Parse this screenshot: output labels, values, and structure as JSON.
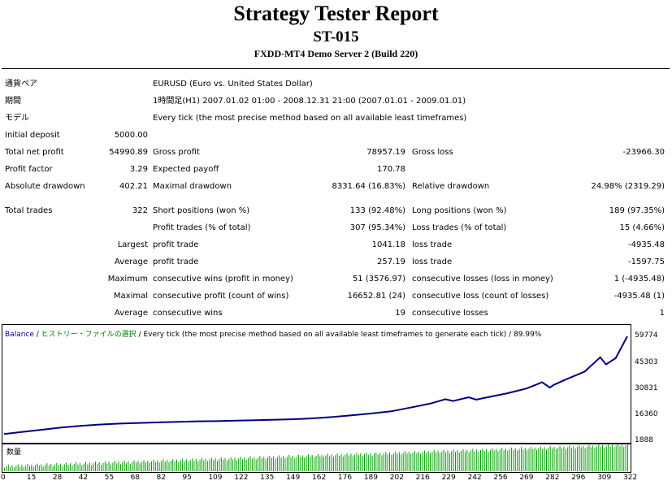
{
  "report": {
    "title": "Strategy Tester Report",
    "subtitle": "ST-015",
    "server": "FXDD-MT4 Demo Server 2 (Build 220)"
  },
  "info": {
    "symbol_label": "通貨ペア",
    "symbol_value": "EURUSD (Euro vs. United States Dollar)",
    "period_label": "期間",
    "period_value": "1時間足(H1) 2007.01.02 01:00 - 2008.12.31 21:00 (2007.01.01 - 2009.01.01)",
    "model_label": "モデル",
    "model_value": "Every tick (the most precise method based on all available least timeframes)"
  },
  "stats": {
    "initial_deposit_label": "Initial deposit",
    "initial_deposit": "5000.00",
    "total_net_profit_label": "Total net profit",
    "total_net_profit": "54990.89",
    "gross_profit_label": "Gross profit",
    "gross_profit": "78957.19",
    "gross_loss_label": "Gross loss",
    "gross_loss": "-23966.30",
    "profit_factor_label": "Profit factor",
    "profit_factor": "3.29",
    "expected_payoff_label": "Expected payoff",
    "expected_payoff": "170.78",
    "absolute_drawdown_label": "Absolute drawdown",
    "absolute_drawdown": "402.21",
    "maximal_drawdown_label": "Maximal drawdown",
    "maximal_drawdown": "8331.64 (16.83%)",
    "relative_drawdown_label": "Relative drawdown",
    "relative_drawdown": "24.98% (2319.29)",
    "total_trades_label": "Total trades",
    "total_trades": "322",
    "short_positions_label": "Short positions (won %)",
    "short_positions": "133 (92.48%)",
    "long_positions_label": "Long positions (won %)",
    "long_positions": "189 (97.35%)",
    "profit_trades_label": "Profit trades (% of total)",
    "profit_trades": "307 (95.34%)",
    "loss_trades_label": "Loss trades (% of total)",
    "loss_trades": "15 (4.66%)",
    "largest_label": "Largest",
    "largest_profit_label": "profit trade",
    "largest_profit": "1041.18",
    "largest_loss_label": "loss trade",
    "largest_loss": "-4935.48",
    "average_label": "Average",
    "average_profit_label": "profit trade",
    "average_profit": "257.19",
    "average_loss_label": "loss trade",
    "average_loss": "-1597.75",
    "maximum_label": "Maximum",
    "max_consec_wins_label": "consecutive wins (profit in money)",
    "max_consec_wins": "51 (3576.97)",
    "max_consec_losses_label": "consecutive losses (loss in money)",
    "max_consec_losses": "1 (-4935.48)",
    "maximal_label": "Maximal",
    "maximal_consec_profit_label": "consecutive profit (count of wins)",
    "maximal_consec_profit": "16652.81 (24)",
    "maximal_consec_loss_label": "consecutive loss (count of losses)",
    "maximal_consec_loss": "-4935.48 (1)",
    "average2_label": "Average",
    "avg_consec_wins_label": "consecutive wins",
    "avg_consec_wins": "19",
    "avg_consec_losses_label": "consecutive losses",
    "avg_consec_losses": "1"
  },
  "chart_header": {
    "balance": "Balance",
    "sep1": " / ",
    "history": "ヒストリー・ファイルの選択",
    "rest": " / Every tick (the most precise method based on all available least timeframes to generate each tick) / 89.99%"
  },
  "volume_label": "数量",
  "colors": {
    "balance_line": "#000080",
    "volume_bars": "#00a000",
    "header_blue": "#000080",
    "header_green": "#008000"
  },
  "chart_data": {
    "type": "line",
    "title": "",
    "series": [
      {
        "name": "Balance",
        "x": [
          0,
          10,
          20,
          30,
          40,
          50,
          60,
          70,
          80,
          90,
          100,
          110,
          120,
          130,
          140,
          150,
          160,
          170,
          180,
          190,
          200,
          210,
          220,
          228,
          232,
          240,
          244,
          248,
          260,
          270,
          278,
          282,
          284,
          290,
          300,
          308,
          311,
          316,
          322
        ],
        "y": [
          5000,
          6200,
          7400,
          8700,
          9600,
          10300,
          10800,
          11200,
          11500,
          11800,
          12100,
          12200,
          12500,
          12700,
          13000,
          13300,
          13800,
          14500,
          15500,
          16500,
          17700,
          19800,
          22000,
          24500,
          23500,
          25600,
          24200,
          25200,
          27800,
          30500,
          34000,
          31000,
          32500,
          35500,
          40000,
          48000,
          44000,
          47500,
          59774
        ]
      }
    ],
    "yticks": [
      "59774",
      "45303",
      "30831",
      "16360",
      "1888"
    ],
    "ytick_values": [
      59774,
      45303,
      30831,
      16360,
      1888
    ],
    "ylim": [
      1888,
      59774
    ],
    "xlim": [
      0,
      322
    ],
    "xticks": [
      "0",
      "15",
      "28",
      "42",
      "55",
      "68",
      "82",
      "95",
      "109",
      "122",
      "135",
      "149",
      "162",
      "176",
      "189",
      "202",
      "216",
      "229",
      "242",
      "256",
      "269",
      "282",
      "296",
      "309",
      "322"
    ]
  }
}
